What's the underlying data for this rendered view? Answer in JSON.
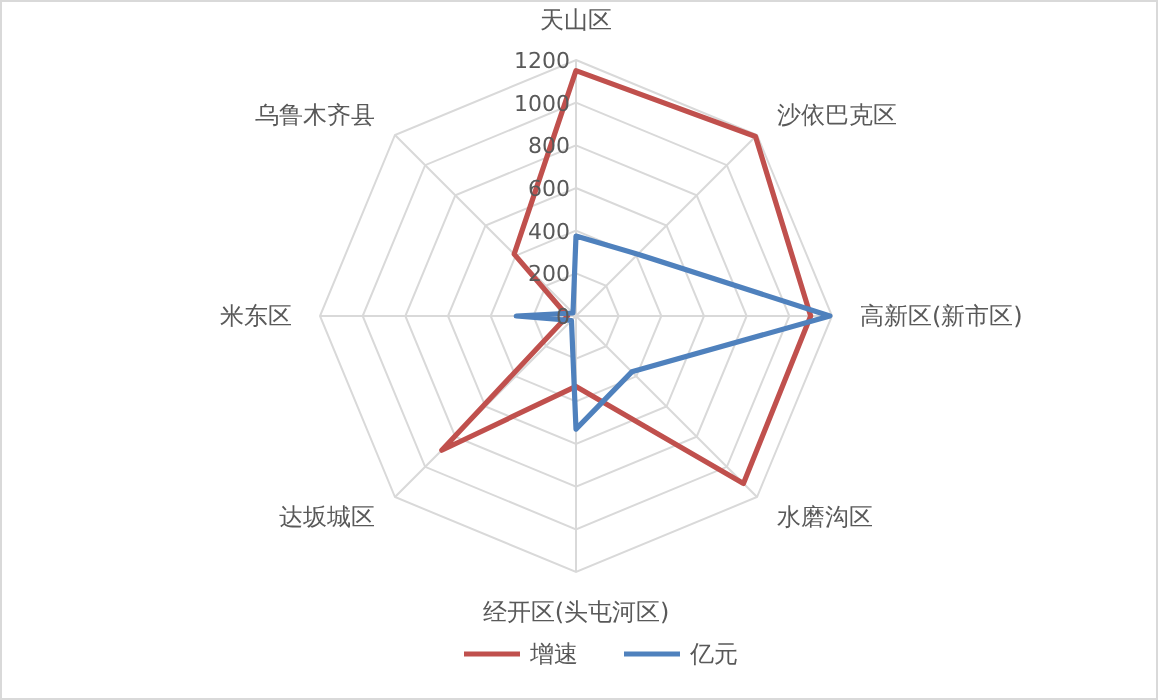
{
  "chart_data": {
    "type": "radar",
    "categories": [
      "天山区",
      "沙依巴克区",
      "高新区(新市区)",
      "水磨沟区",
      "经开区(头屯河区)",
      "达坂城区",
      "米东区",
      "乌鲁木齐县"
    ],
    "series": [
      {
        "name": "增速",
        "color": "#c0504d",
        "values": [
          1150,
          1190,
          1100,
          1110,
          330,
          890,
          40,
          410
        ]
      },
      {
        "name": "亿元",
        "color": "#4f81bd",
        "values": [
          375,
          410,
          1190,
          370,
          530,
          30,
          280,
          20
        ]
      }
    ],
    "ylim": [
      0,
      1200
    ],
    "yticks": [
      0,
      200,
      400,
      600,
      800,
      1000,
      1200
    ],
    "grid": true,
    "legend": "bottom",
    "marker": "none",
    "line_style": "solid"
  }
}
